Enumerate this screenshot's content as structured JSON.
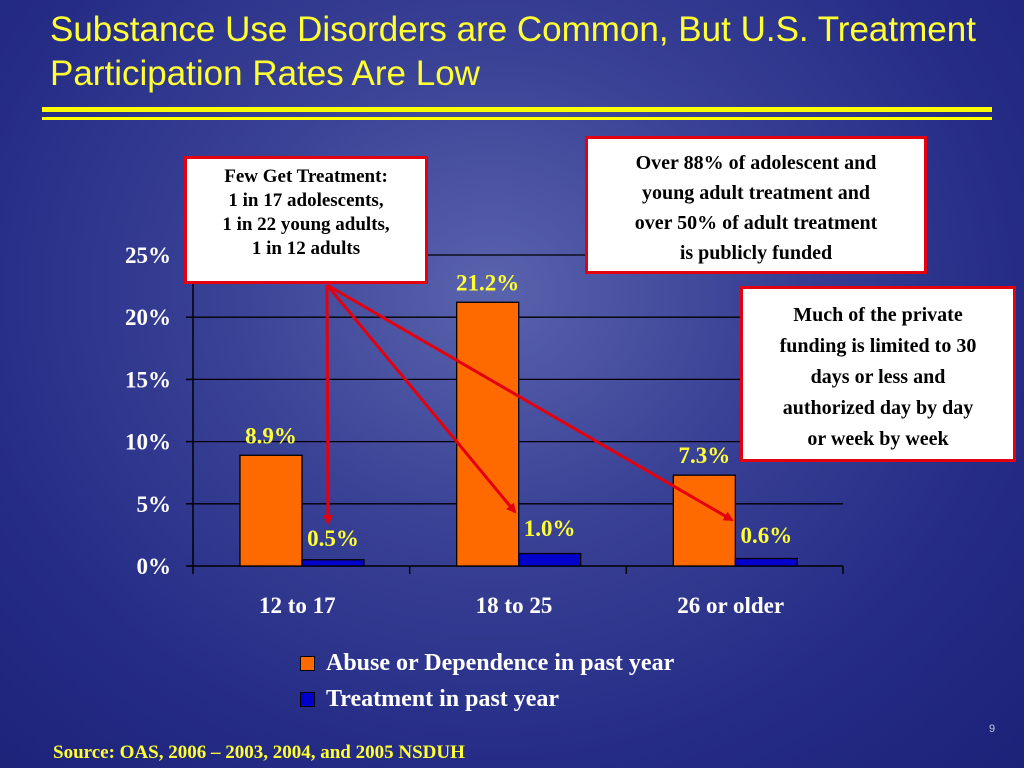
{
  "slide": {
    "title": "Substance Use Disorders are Common, But U.S. Treatment Participation Rates Are Low",
    "source": "Source: OAS, 2006 – 2003, 2004, and 2005 NSDUH",
    "page_number": "9"
  },
  "colors": {
    "background": "#252c86",
    "title": "#ffff33",
    "abuse_bar": "#ff6a00",
    "treatment_bar": "#0000cc",
    "callout_border": "#e3000f",
    "arrow": "#e3000f"
  },
  "chart_data": {
    "type": "bar",
    "categories": [
      "12 to 17",
      "18 to 25",
      "26 or older"
    ],
    "series": [
      {
        "name": "Abuse or Dependence in past year",
        "values": [
          8.9,
          21.2,
          7.3
        ],
        "labels": [
          "8.9%",
          "21.2%",
          "7.3%"
        ]
      },
      {
        "name": "Treatment in past year",
        "values": [
          0.5,
          1.0,
          0.6
        ],
        "labels": [
          "0.5%",
          "1.0%",
          "0.6%"
        ]
      }
    ],
    "ylim": [
      0,
      25
    ],
    "yticks": [
      0,
      5,
      10,
      15,
      20,
      25
    ],
    "ytick_labels": [
      "0%",
      "5%",
      "10%",
      "15%",
      "20%",
      "25%"
    ],
    "grid": true,
    "legend_position": "bottom"
  },
  "callouts": {
    "few_treatment": {
      "lines": [
        "Few Get Treatment:",
        "1 in 17 adolescents,",
        "1 in 22 young adults,",
        "1 in 12 adults"
      ]
    },
    "publicly_funded": {
      "lines": [
        "Over 88% of adolescent and",
        "young adult treatment and",
        "over 50% of adult treatment",
        "is publicly funded"
      ]
    },
    "private_funding": {
      "lines": [
        "Much of the private",
        "funding is limited to 30",
        "days or less and",
        "authorized day by day",
        "or week by week"
      ]
    }
  }
}
